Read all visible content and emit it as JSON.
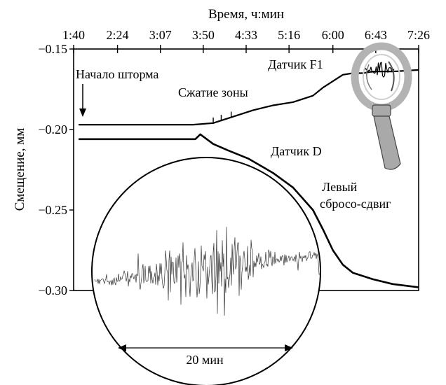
{
  "chart_data": {
    "type": "line",
    "title": "",
    "xlabel": "Время, ч:мин",
    "ylabel": "Смещение, мм",
    "x_ticks": [
      "1:40",
      "2:24",
      "3:07",
      "3:50",
      "4:33",
      "5:16",
      "6:00",
      "6:43",
      "7:26"
    ],
    "x_tick_minutes": [
      100,
      144,
      187,
      230,
      273,
      316,
      360,
      403,
      446
    ],
    "xlim_minutes": [
      100,
      446
    ],
    "y_ticks": [
      "−0.15",
      "−0.20",
      "−0.25",
      "−0.30"
    ],
    "y_tick_values": [
      -0.15,
      -0.2,
      -0.25,
      -0.3
    ],
    "ylim": [
      -0.3,
      -0.15
    ],
    "series": [
      {
        "name": "Датчик F1",
        "x": [
          105,
          160,
          220,
          240,
          255,
          280,
          300,
          320,
          340,
          350,
          370,
          380,
          390,
          400,
          420,
          446
        ],
        "y": [
          -0.197,
          -0.197,
          -0.197,
          -0.196,
          -0.193,
          -0.188,
          -0.185,
          -0.183,
          -0.179,
          -0.174,
          -0.166,
          -0.165,
          -0.165,
          -0.164,
          -0.164,
          -0.163
        ]
      },
      {
        "name": "Датчик D",
        "x": [
          105,
          160,
          222,
          227,
          240,
          255,
          275,
          300,
          320,
          340,
          350,
          360,
          370,
          380,
          400,
          420,
          446
        ],
        "y": [
          -0.206,
          -0.206,
          -0.206,
          -0.203,
          -0.209,
          -0.213,
          -0.218,
          -0.227,
          -0.236,
          -0.25,
          -0.262,
          -0.275,
          -0.284,
          -0.289,
          -0.293,
          -0.296,
          -0.298
        ]
      }
    ],
    "annotations": {
      "storm_start": "Начало шторма",
      "compression": "Сжатие зоны",
      "fault": "Левый\nсбросо-сдвиг",
      "inset_scale": "20 мин"
    },
    "grid": false,
    "legend": "none"
  }
}
